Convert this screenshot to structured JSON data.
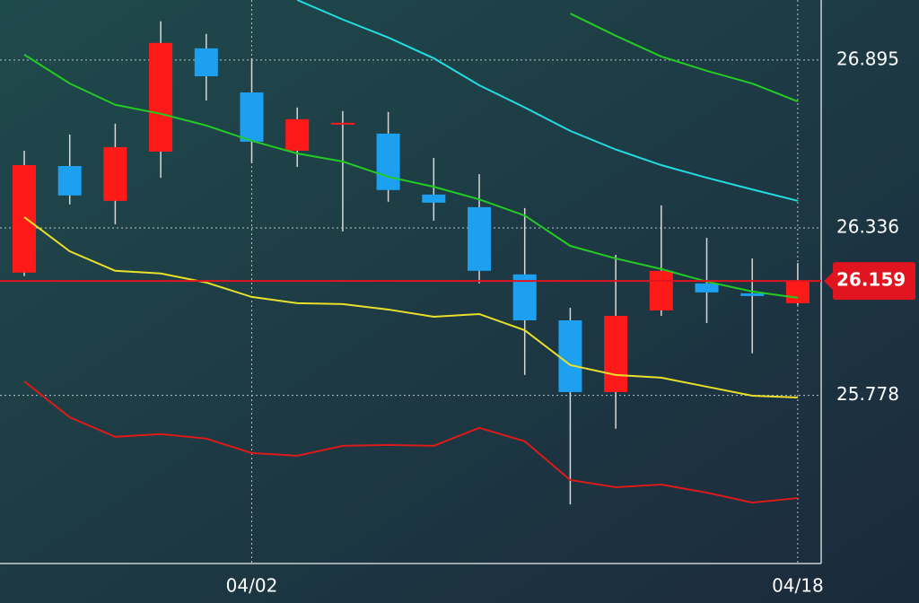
{
  "chart_data": {
    "type": "candlestick",
    "categories": [
      null,
      null,
      null,
      null,
      null,
      "04/02",
      null,
      null,
      null,
      null,
      null,
      null,
      null,
      null,
      null,
      null,
      null,
      "04/18"
    ],
    "open": [
      26.187,
      26.542,
      26.426,
      26.59,
      26.934,
      26.787,
      26.593,
      26.68,
      26.65,
      26.447,
      26.405,
      26.181,
      26.028,
      25.789,
      26.061,
      26.151,
      26.118,
      26.085
    ],
    "high": [
      26.593,
      26.647,
      26.683,
      27.024,
      26.982,
      26.901,
      26.737,
      26.725,
      26.722,
      26.569,
      26.515,
      26.402,
      26.07,
      26.246,
      26.411,
      26.303,
      26.234,
      26.219
    ],
    "low": [
      26.175,
      26.414,
      26.348,
      26.503,
      26.76,
      26.551,
      26.539,
      26.324,
      26.423,
      26.36,
      26.151,
      25.846,
      25.415,
      25.667,
      26.043,
      26.019,
      25.918,
      26.079
    ],
    "close": [
      26.545,
      26.444,
      26.605,
      26.952,
      26.841,
      26.623,
      26.698,
      26.686,
      26.462,
      26.42,
      26.193,
      26.028,
      25.789,
      26.043,
      26.193,
      26.121,
      26.109,
      26.159
    ],
    "up_color": "#ff1a1a",
    "down_color": "#1ea0f0",
    "wick_color": "#d8d8d8",
    "series": [
      {
        "color": "#e8e02a",
        "values": [
          26.372,
          26.258,
          26.193,
          26.184,
          26.154,
          26.106,
          26.085,
          26.082,
          26.064,
          26.04,
          26.049,
          25.995,
          25.879,
          25.846,
          25.837,
          25.807,
          25.777,
          25.771
        ]
      },
      {
        "color": "#22cc22",
        "values": [
          26.913,
          26.817,
          26.746,
          26.716,
          26.677,
          26.626,
          26.584,
          26.557,
          26.506,
          26.473,
          26.431,
          26.377,
          26.276,
          26.234,
          26.199,
          26.157,
          26.124,
          26.103
        ]
      },
      {
        "color": "#22dde0",
        "values": [
          null,
          null,
          null,
          null,
          null,
          null,
          27.095,
          27.03,
          26.97,
          26.901,
          26.811,
          26.737,
          26.659,
          26.597,
          26.545,
          26.503,
          26.464,
          26.426
        ]
      },
      {
        "color": "#22cc22",
        "values": [
          null,
          null,
          null,
          null,
          null,
          null,
          null,
          null,
          null,
          null,
          null,
          null,
          27.05,
          26.976,
          26.907,
          26.859,
          26.817,
          26.757
        ]
      },
      {
        "color": "#dd1a1a",
        "values": [
          25.825,
          25.705,
          25.64,
          25.649,
          25.634,
          25.586,
          25.577,
          25.61,
          25.613,
          25.61,
          25.67,
          25.625,
          25.496,
          25.472,
          25.481,
          25.454,
          25.421,
          25.436
        ]
      }
    ],
    "last_price": 26.159,
    "last_price_color": "#e0151f",
    "ylim": [
      25.218,
      27.095
    ],
    "yticks": [
      25.778,
      26.336,
      26.895
    ],
    "grid": true
  }
}
